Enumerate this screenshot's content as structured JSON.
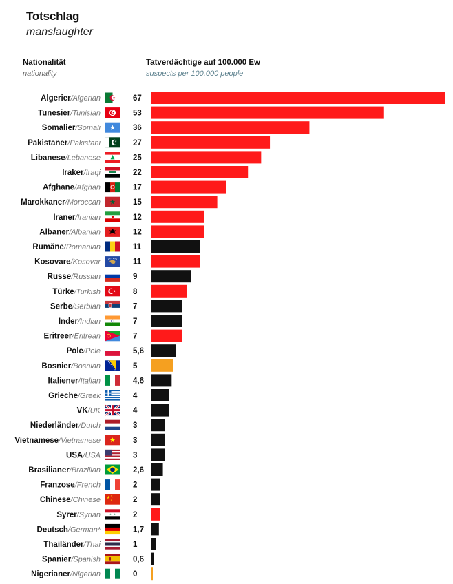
{
  "header": {
    "title": "Totschlag",
    "subtitle": "manslaughter",
    "left_heading": "Nationalität",
    "left_heading_en": "nationality",
    "right_heading": "Tatverdächtige auf 100.000 Ew",
    "right_heading_en": "suspects per 100.000 people"
  },
  "colors": {
    "red": "#ff1a1a",
    "black": "#111111",
    "orange": "#f5a020"
  },
  "chart_data": {
    "type": "bar",
    "orientation": "horizontal",
    "title": "Totschlag",
    "subtitle": "manslaughter",
    "ylabel": "Nationalität / nationality",
    "xlabel": "Tatverdächtige auf 100.000 Ew / suspects per 100.000 people",
    "xlim": [
      0,
      67
    ],
    "grid": false,
    "legend": "none",
    "rows": [
      {
        "de": "Algerier",
        "en": "Algerian",
        "label": "67",
        "value": 67,
        "color": "red",
        "flag": "algeria-flag"
      },
      {
        "de": "Tunesier",
        "en": "Tunisian",
        "label": "53",
        "value": 53,
        "color": "red",
        "flag": "tunisia-flag"
      },
      {
        "de": "Somalier",
        "en": "Somali",
        "label": "36",
        "value": 36,
        "color": "red",
        "flag": "somalia-flag"
      },
      {
        "de": "Pakistaner",
        "en": "Pakistani",
        "label": "27",
        "value": 27,
        "color": "red",
        "flag": "pakistan-flag"
      },
      {
        "de": "Libanese",
        "en": "Lebanese",
        "label": "25",
        "value": 25,
        "color": "red",
        "flag": "lebanon-flag"
      },
      {
        "de": "Iraker",
        "en": "Iraqi",
        "label": "22",
        "value": 22,
        "color": "red",
        "flag": "iraq-flag"
      },
      {
        "de": "Afghane",
        "en": "Afghan",
        "label": "17",
        "value": 17,
        "color": "red",
        "flag": "afghanistan-flag"
      },
      {
        "de": "Marokkaner",
        "en": "Moroccan",
        "label": "15",
        "value": 15,
        "color": "red",
        "flag": "morocco-flag"
      },
      {
        "de": "Iraner",
        "en": "Iranian",
        "label": "12",
        "value": 12,
        "color": "red",
        "flag": "iran-flag"
      },
      {
        "de": "Albaner",
        "en": "Albanian",
        "label": "12",
        "value": 12,
        "color": "red",
        "flag": "albania-flag"
      },
      {
        "de": "Rumäne",
        "en": "Romanian",
        "label": "11",
        "value": 11,
        "color": "black",
        "flag": "romania-flag"
      },
      {
        "de": "Kosovare",
        "en": "Kosovar",
        "label": "11",
        "value": 11,
        "color": "red",
        "flag": "kosovo-flag"
      },
      {
        "de": "Russe",
        "en": "Russian",
        "label": "9",
        "value": 9,
        "color": "black",
        "flag": "russia-flag"
      },
      {
        "de": "Türke",
        "en": "Turkish",
        "label": "8",
        "value": 8,
        "color": "red",
        "flag": "turkey-flag"
      },
      {
        "de": "Serbe",
        "en": "Serbian",
        "label": "7",
        "value": 7,
        "color": "black",
        "flag": "serbia-flag"
      },
      {
        "de": "Inder",
        "en": "Indian",
        "label": "7",
        "value": 7,
        "color": "black",
        "flag": "india-flag"
      },
      {
        "de": "Eritreer",
        "en": "Eritrean",
        "label": "7",
        "value": 7,
        "color": "red",
        "flag": "eritrea-flag"
      },
      {
        "de": "Pole",
        "en": "Pole",
        "label": "5,6",
        "value": 5.6,
        "color": "black",
        "flag": "poland-flag"
      },
      {
        "de": "Bosnier",
        "en": "Bosnian",
        "label": "5",
        "value": 5,
        "color": "orange",
        "flag": "bosnia-flag"
      },
      {
        "de": "Italiener",
        "en": "Italian",
        "label": "4,6",
        "value": 4.6,
        "color": "black",
        "flag": "italy-flag"
      },
      {
        "de": "Grieche",
        "en": "Greek",
        "label": "4",
        "value": 4,
        "color": "black",
        "flag": "greece-flag"
      },
      {
        "de": "VK",
        "en": "UK",
        "label": "4",
        "value": 4,
        "color": "black",
        "flag": "uk-flag"
      },
      {
        "de": "Niederländer",
        "en": "Dutch",
        "label": "3",
        "value": 3,
        "color": "black",
        "flag": "netherlands-flag"
      },
      {
        "de": "Vietnamese",
        "en": "Vietnamese",
        "label": "3",
        "value": 3,
        "color": "black",
        "flag": "vietnam-flag"
      },
      {
        "de": "USA",
        "en": "USA",
        "label": "3",
        "value": 3,
        "color": "black",
        "flag": "usa-flag"
      },
      {
        "de": "Brasilianer",
        "en": "Brazilian",
        "label": "2,6",
        "value": 2.6,
        "color": "black",
        "flag": "brazil-flag"
      },
      {
        "de": "Franzose",
        "en": "French",
        "label": "2",
        "value": 2,
        "color": "black",
        "flag": "france-flag"
      },
      {
        "de": "Chinese",
        "en": "Chinese",
        "label": "2",
        "value": 2,
        "color": "black",
        "flag": "china-flag"
      },
      {
        "de": "Syrer",
        "en": "Syrian",
        "label": "2",
        "value": 2,
        "color": "red",
        "flag": "syria-flag"
      },
      {
        "de": "Deutsch",
        "en": "German*",
        "label": "1,7",
        "value": 1.7,
        "color": "black",
        "flag": "germany-flag"
      },
      {
        "de": "Thailänder",
        "en": "Thai",
        "label": "1",
        "value": 1,
        "color": "black",
        "flag": "thailand-flag"
      },
      {
        "de": "Spanier",
        "en": "Spanish",
        "label": "0,6",
        "value": 0.6,
        "color": "black",
        "flag": "spain-flag"
      },
      {
        "de": "Nigerianer",
        "en": "Nigerian",
        "label": "0",
        "value": 0,
        "color": "orange",
        "flag": "nigeria-flag"
      }
    ]
  }
}
